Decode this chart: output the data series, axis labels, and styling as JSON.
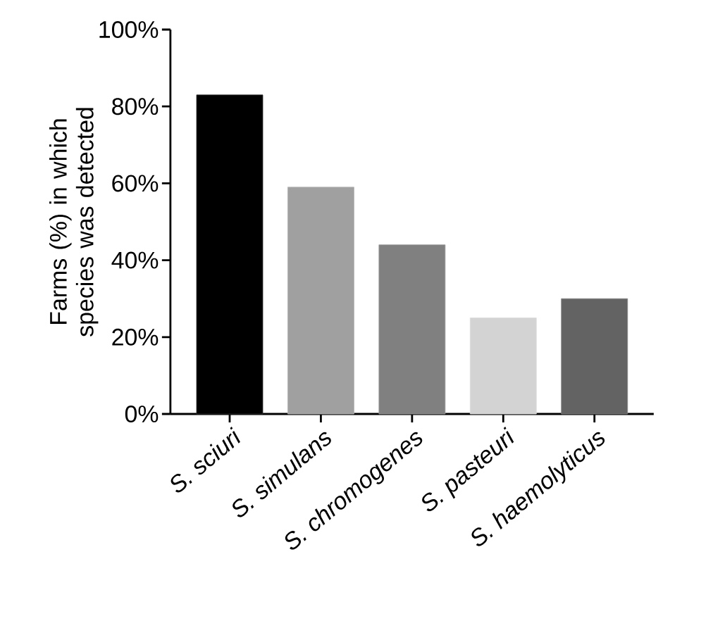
{
  "chart_data": {
    "type": "bar",
    "ylabel": "Farms (%) in which species was detected",
    "categories": [
      "S. sciuri",
      "S. simulans",
      "S. chromogenes",
      "S. pasteuri",
      "S. haemolyticus"
    ],
    "values": [
      83,
      59,
      44,
      25,
      30
    ],
    "colors": [
      "#000000",
      "#a0a0a0",
      "#808080",
      "#d3d3d3",
      "#636363"
    ],
    "ylim": [
      0,
      100
    ],
    "yticks": [
      {
        "value": 0,
        "label": "0%"
      },
      {
        "value": 20,
        "label": "20%"
      },
      {
        "value": 40,
        "label": "40%"
      },
      {
        "value": 60,
        "label": "60%"
      },
      {
        "value": 80,
        "label": "80%"
      },
      {
        "value": 100,
        "label": "100%"
      }
    ],
    "grid": false
  }
}
